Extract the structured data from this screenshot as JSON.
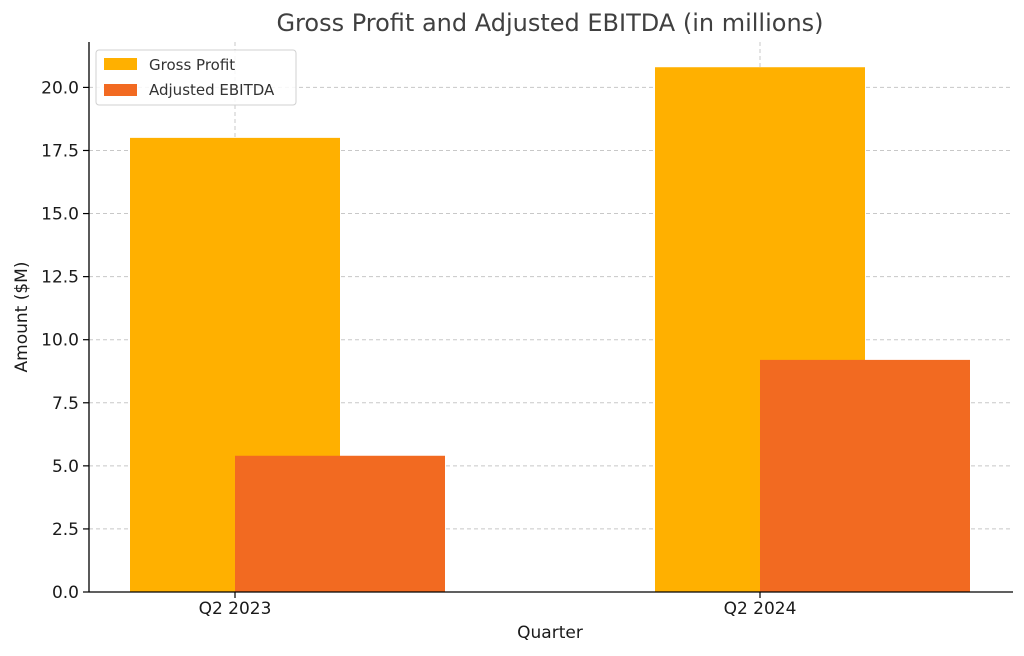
{
  "colors": {
    "gross_profit": "#FFB000",
    "adjusted_ebitda": "#F26A21"
  },
  "chart_data": {
    "type": "bar",
    "title": "Gross Profit and Adjusted EBITDA (in millions)",
    "xlabel": "Quarter",
    "ylabel": "Amount ($M)",
    "categories": [
      "Q2 2023",
      "Q2 2024"
    ],
    "series": [
      {
        "name": "Gross Profit",
        "values": [
          18.0,
          20.8
        ]
      },
      {
        "name": "Adjusted EBITDA",
        "values": [
          5.4,
          9.2
        ]
      }
    ],
    "ylim": [
      0,
      21.8
    ],
    "yticks": [
      "0.0",
      "2.5",
      "5.0",
      "7.5",
      "10.0",
      "12.5",
      "15.0",
      "17.5",
      "20.0"
    ],
    "grid": true,
    "legend_position": "top-left"
  }
}
